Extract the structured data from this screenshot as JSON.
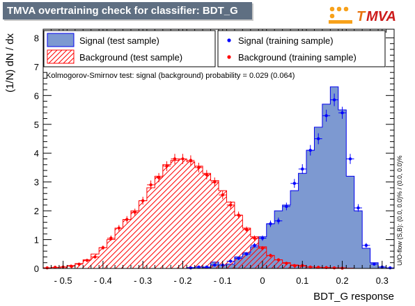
{
  "header": {
    "title": "TMVA overtraining check for classifier: BDT_G",
    "logo_text": "MVA",
    "logo_letter": "T"
  },
  "colors": {
    "signal_fill": "#7d99d1",
    "signal_line": "#0000ee",
    "background_hatch": "#ff0000",
    "signal_points": "#0000ff",
    "background_points": "#ff0000",
    "title_bg": "#5f6f82"
  },
  "chart_data": {
    "type": "histogram",
    "xlabel": "BDT_G response",
    "ylabel": "(1/N) dN / dx",
    "xlim": [
      -0.55,
      0.33
    ],
    "ylim": [
      0,
      8.3
    ],
    "x_ticks": [
      -0.5,
      -0.4,
      -0.3,
      -0.2,
      -0.1,
      0,
      0.1,
      0.2,
      0.3
    ],
    "x_tick_labels": [
      "- 0.5",
      "- 0.4",
      "- 0.3",
      "- 0.2",
      "- 0.1",
      "0",
      "0.1",
      "0.2",
      "0.3"
    ],
    "y_ticks": [
      0,
      1,
      2,
      3,
      4,
      5,
      6,
      7,
      8
    ],
    "y_tick_labels": [
      "0",
      "1",
      "2",
      "3",
      "4",
      "5",
      "6",
      "7",
      "8"
    ],
    "bin_start": -0.55,
    "bin_width": 0.02,
    "annotation": "Kolmogorov-Smirnov test: signal (background) probability = 0.029 (0.064)",
    "side_label": "U/O-flow (S,B): (0.0, 0.0)% / (0.0, 0.0)%",
    "legend": {
      "signal_test": "Signal (test sample)",
      "background_test": "Background (test sample)",
      "signal_train": "Signal (training sample)",
      "background_train": "Background (training sample)"
    },
    "series": [
      {
        "name": "Signal (test sample)",
        "style": "filled-histogram",
        "values": [
          0,
          0,
          0,
          0,
          0,
          0,
          0,
          0,
          0,
          0,
          0,
          0,
          0,
          0,
          0,
          0,
          0,
          0,
          0.03,
          0.05,
          0.03,
          0.22,
          0.12,
          0.15,
          0.4,
          0.55,
          0.75,
          1.1,
          1.55,
          2.0,
          2.2,
          2.7,
          3.3,
          4.1,
          4.9,
          5.7,
          6.3,
          5.5,
          3.2,
          2.0,
          0.7,
          0.2,
          0.05,
          0
        ]
      },
      {
        "name": "Background (test sample)",
        "style": "hatched-histogram",
        "values": [
          0.02,
          0.03,
          0.05,
          0.1,
          0.17,
          0.3,
          0.5,
          0.72,
          1.0,
          1.4,
          1.7,
          2.0,
          2.35,
          2.8,
          3.2,
          3.6,
          3.75,
          3.8,
          3.7,
          3.55,
          3.3,
          3.05,
          2.7,
          2.3,
          1.85,
          1.4,
          1.1,
          0.75,
          0.45,
          0.3,
          0.2,
          0.12,
          0.08,
          0.05,
          0.04,
          0.03,
          0.02,
          0.02,
          0.01,
          0,
          0,
          0,
          0,
          0
        ]
      },
      {
        "name": "Signal (training sample)",
        "style": "points",
        "values": [
          null,
          null,
          null,
          null,
          null,
          null,
          null,
          null,
          null,
          null,
          null,
          null,
          null,
          null,
          null,
          null,
          null,
          null,
          0.02,
          0.05,
          0.05,
          0.12,
          0.12,
          0.25,
          0.35,
          0.5,
          0.8,
          1.05,
          1.55,
          1.65,
          2.15,
          2.95,
          3.45,
          4.1,
          4.5,
          5.3,
          5.85,
          5.4,
          3.8,
          2.1,
          0.8,
          0.15,
          0.05,
          0.02
        ]
      },
      {
        "name": "Background (training sample)",
        "style": "points",
        "values": [
          0.02,
          0.04,
          0.05,
          0.08,
          0.15,
          0.28,
          0.4,
          0.72,
          1.05,
          1.4,
          1.7,
          1.95,
          2.35,
          2.9,
          3.15,
          3.55,
          3.8,
          3.8,
          3.75,
          3.5,
          3.25,
          3.0,
          2.55,
          2.2,
          1.85,
          1.35,
          1.05,
          0.7,
          0.45,
          0.3,
          0.18,
          0.1,
          0.1,
          0.05,
          0.04,
          0.03,
          0.02,
          0.01,
          null,
          null,
          null,
          null,
          null,
          null
        ]
      }
    ]
  }
}
